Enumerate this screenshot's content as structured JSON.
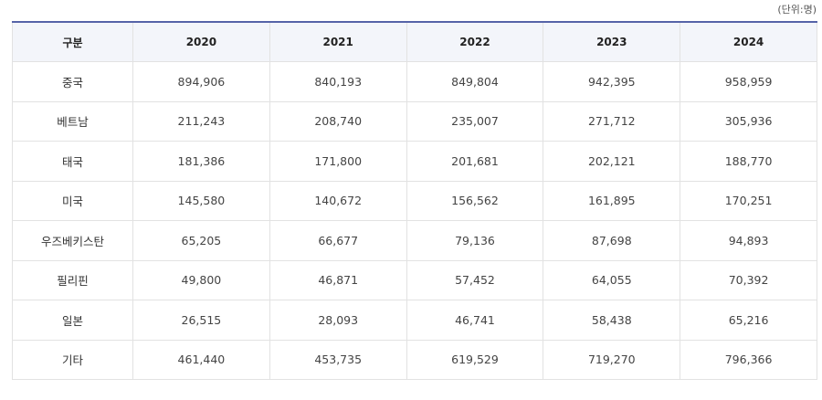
{
  "unit_note": "(단위:명)",
  "table": {
    "headers": [
      "구분",
      "2020",
      "2021",
      "2022",
      "2023",
      "2024"
    ],
    "rows": [
      [
        "중국",
        "894,906",
        "840,193",
        "849,804",
        "942,395",
        "958,959"
      ],
      [
        "베트남",
        "211,243",
        "208,740",
        "235,007",
        "271,712",
        "305,936"
      ],
      [
        "태국",
        "181,386",
        "171,800",
        "201,681",
        "202,121",
        "188,770"
      ],
      [
        "미국",
        "145,580",
        "140,672",
        "156,562",
        "161,895",
        "170,251"
      ],
      [
        "우즈베키스탄",
        "65,205",
        "66,677",
        "79,136",
        "87,698",
        "94,893"
      ],
      [
        "필리핀",
        "49,800",
        "46,871",
        "57,452",
        "64,055",
        "70,392"
      ],
      [
        "일본",
        "26,515",
        "28,093",
        "46,741",
        "58,438",
        "65,216"
      ],
      [
        "기타",
        "461,440",
        "453,735",
        "619,529",
        "719,270",
        "796,366"
      ]
    ]
  },
  "colors": {
    "header_bg": "#f3f5fa",
    "top_border": "#5563a8",
    "grid": "#e2e2e2"
  }
}
